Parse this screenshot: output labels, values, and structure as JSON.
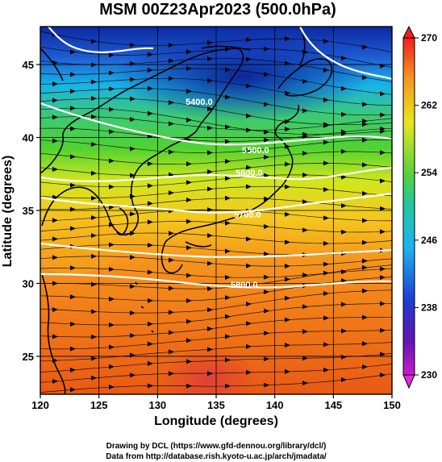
{
  "title": "MSM 00Z23Apr2023 (500.0hPa)",
  "x_axis": {
    "label": "Longitude (degrees)",
    "ticks": [
      "120",
      "125",
      "130",
      "135",
      "140",
      "145",
      "150"
    ]
  },
  "y_axis": {
    "label": "Latitude  (degrees)",
    "ticks": [
      "25",
      "30",
      "35",
      "40",
      "45"
    ]
  },
  "colorbar": {
    "ticks": [
      "270",
      "262",
      "254",
      "246",
      "238",
      "230"
    ]
  },
  "contours": [
    {
      "label": "5400.0",
      "value": 5400
    },
    {
      "label": "5500.0",
      "value": 5500
    },
    {
      "label": "5600.0",
      "value": 5600
    },
    {
      "label": "5700.0",
      "value": 5700
    },
    {
      "label": "5800.0",
      "value": 5800
    }
  ],
  "footer": {
    "line1": "Drawing by DCL (https://www.gfd-dennou.org/library/dcl/)",
    "line2": "Data from http://database.rish.kyoto-u.ac.jp/arch/jmadata/"
  },
  "map_extent": {
    "lon": [
      120,
      150
    ],
    "lat": [
      22.4,
      47.6
    ]
  },
  "colors": {
    "warm": "#e84a10",
    "orange": "#f39a1a",
    "yellow": "#e6e61e",
    "green": "#3cc83c",
    "cyan": "#1ec8dc",
    "blue": "#1e5ad2",
    "navy": "#0c28a0"
  }
}
